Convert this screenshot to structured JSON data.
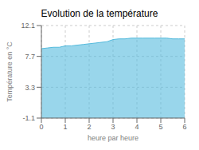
{
  "chart_data": {
    "type": "area",
    "title": "Evolution de la température",
    "x_label": "heure par heure",
    "y_label": "Température en °C",
    "x": [
      0,
      0.25,
      0.5,
      0.75,
      1.0,
      1.25,
      1.5,
      1.75,
      2.0,
      2.25,
      2.5,
      2.75,
      3.0,
      3.25,
      3.5,
      3.75,
      4.0,
      4.25,
      4.5,
      4.75,
      5.0,
      5.25,
      5.5,
      5.75,
      6.0
    ],
    "values": [
      8.8,
      8.9,
      9.0,
      9.0,
      9.2,
      9.2,
      9.3,
      9.4,
      9.5,
      9.6,
      9.7,
      9.8,
      10.1,
      10.2,
      10.2,
      10.3,
      10.3,
      10.3,
      10.3,
      10.3,
      10.3,
      10.3,
      10.2,
      10.2,
      10.2
    ],
    "color": "#55bbdd",
    "xlim": [
      0,
      6
    ],
    "ylim": [
      -1.1,
      12.1
    ],
    "xticks": [
      0,
      1,
      2,
      3,
      4,
      5,
      6
    ],
    "yticks": [
      -1.1,
      3.3,
      7.7,
      12.1
    ],
    "grid": true
  }
}
